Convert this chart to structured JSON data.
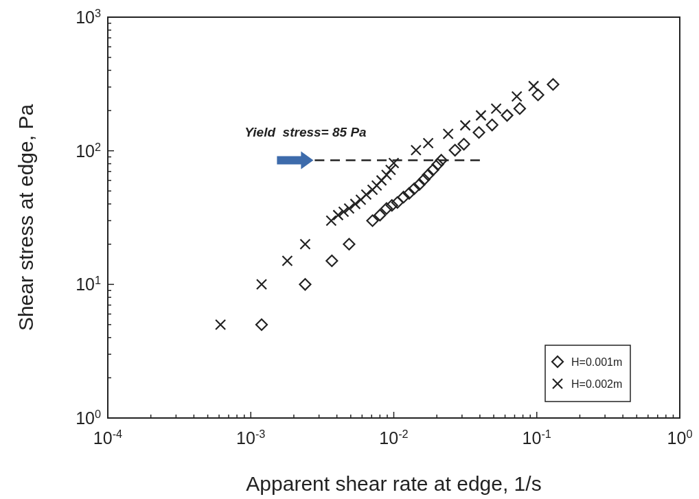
{
  "chart_data": {
    "type": "scatter",
    "xlabel": "Apparent shear rate at edge, 1/s",
    "ylabel": "Shear stress at edge, Pa",
    "log": "xy",
    "legend": "bottom right",
    "grid": false,
    "xlim": [
      0.0001,
      1
    ],
    "ylim": [
      1,
      1000
    ],
    "xticks": [
      {
        "value": 0.0001,
        "label": "10$^{-4}$"
      },
      {
        "value": 0.0002,
        "label": null
      },
      {
        "value": 0.0003,
        "label": null
      },
      {
        "value": 0.0004,
        "label": null
      },
      {
        "value": 0.0005,
        "label": null
      },
      {
        "value": 0.0006,
        "label": null
      },
      {
        "value": 0.0007,
        "label": null
      },
      {
        "value": 0.0008,
        "label": null
      },
      {
        "value": 0.0009,
        "label": null
      },
      {
        "value": 0.001,
        "label": "10$^{-3}$"
      },
      {
        "value": 0.002,
        "label": null
      },
      {
        "value": 0.003,
        "label": null
      },
      {
        "value": 0.004,
        "label": null
      },
      {
        "value": 0.005,
        "label": null
      },
      {
        "value": 0.006,
        "label": null
      },
      {
        "value": 0.007,
        "label": null
      },
      {
        "value": 0.008,
        "label": null
      },
      {
        "value": 0.009,
        "label": null
      },
      {
        "value": 0.01,
        "label": "10$^{-2}$"
      },
      {
        "value": 0.02,
        "label": null
      },
      {
        "value": 0.03,
        "label": null
      },
      {
        "value": 0.04,
        "label": null
      },
      {
        "value": 0.05,
        "label": null
      },
      {
        "value": 0.06,
        "label": null
      },
      {
        "value": 0.07,
        "label": null
      },
      {
        "value": 0.08,
        "label": null
      },
      {
        "value": 0.09,
        "label": null
      },
      {
        "value": 0.1,
        "label": "10$^{-1}$"
      },
      {
        "value": 0.2,
        "label": null
      },
      {
        "value": 0.3,
        "label": null
      },
      {
        "value": 0.4,
        "label": null
      },
      {
        "value": 0.5,
        "label": null
      },
      {
        "value": 0.6,
        "label": null
      },
      {
        "value": 0.7,
        "label": null
      },
      {
        "value": 0.8,
        "label": null
      },
      {
        "value": 0.9,
        "label": null
      },
      {
        "value": 1,
        "label": "10$^{0}$"
      }
    ],
    "yticks": [
      {
        "value": 1,
        "label": "10$^{0}$"
      },
      {
        "value": 2,
        "label": null
      },
      {
        "value": 3,
        "label": null
      },
      {
        "value": 4,
        "label": null
      },
      {
        "value": 5,
        "label": null
      },
      {
        "value": 6,
        "label": null
      },
      {
        "value": 7,
        "label": null
      },
      {
        "value": 8,
        "label": null
      },
      {
        "value": 9,
        "label": null
      },
      {
        "value": 10,
        "label": "10$^{1}$"
      },
      {
        "value": 20,
        "label": null
      },
      {
        "value": 30,
        "label": null
      },
      {
        "value": 40,
        "label": null
      },
      {
        "value": 50,
        "label": null
      },
      {
        "value": 60,
        "label": null
      },
      {
        "value": 70,
        "label": null
      },
      {
        "value": 80,
        "label": null
      },
      {
        "value": 90,
        "label": null
      },
      {
        "value": 100,
        "label": "10$^{2}$"
      },
      {
        "value": 200,
        "label": null
      },
      {
        "value": 300,
        "label": null
      },
      {
        "value": 400,
        "label": null
      },
      {
        "value": 500,
        "label": null
      },
      {
        "value": 600,
        "label": null
      },
      {
        "value": 700,
        "label": null
      },
      {
        "value": 800,
        "label": null
      },
      {
        "value": 900,
        "label": null
      },
      {
        "value": 1000,
        "label": "10$^{3}$"
      }
    ],
    "annotations": [
      {
        "text": "Yield  stress= 85 Pa",
        "x": 0.0028,
        "y": 85
      }
    ],
    "series": [
      {
        "name": "H=0.001m",
        "color": "#222222",
        "marker": "diamond",
        "x": [
          0.00119,
          0.0024,
          0.00369,
          0.00487,
          0.0071,
          0.008,
          0.0089,
          0.0097,
          0.0106,
          0.0117,
          0.0128,
          0.0139,
          0.0151,
          0.0163,
          0.0174,
          0.0188,
          0.0203,
          0.0215,
          0.0268,
          0.0309,
          0.0394,
          0.0487,
          0.062,
          0.076,
          0.102,
          0.13
        ],
        "values": [
          5,
          10,
          15,
          20,
          30,
          33,
          37,
          39,
          41,
          45,
          48,
          52,
          56,
          61,
          66,
          72,
          79,
          85,
          101,
          112,
          137,
          156,
          184,
          207,
          262,
          314
        ]
      },
      {
        "name": "H=0.002m",
        "color": "#222222",
        "marker": "cross",
        "x": [
          0.000614,
          0.00119,
          0.0018,
          0.0024,
          0.00365,
          0.00408,
          0.00446,
          0.00487,
          0.00538,
          0.00588,
          0.00642,
          0.0071,
          0.0076,
          0.0082,
          0.0089,
          0.0095,
          0.01,
          0.0143,
          0.0174,
          0.024,
          0.0316,
          0.0407,
          0.052,
          0.0725,
          0.095
        ],
        "values": [
          5,
          10,
          15,
          20,
          30,
          33,
          35,
          37,
          40,
          43,
          47,
          51,
          55,
          60,
          66,
          72,
          81,
          101,
          114,
          134,
          155,
          184,
          207,
          255,
          305
        ]
      },
      {
        "type": "line",
        "color": "#222222",
        "marker": "none",
        "line_style": "dashed",
        "x": [
          0.0028,
          0.04
        ],
        "values": [
          85,
          85
        ]
      }
    ]
  }
}
